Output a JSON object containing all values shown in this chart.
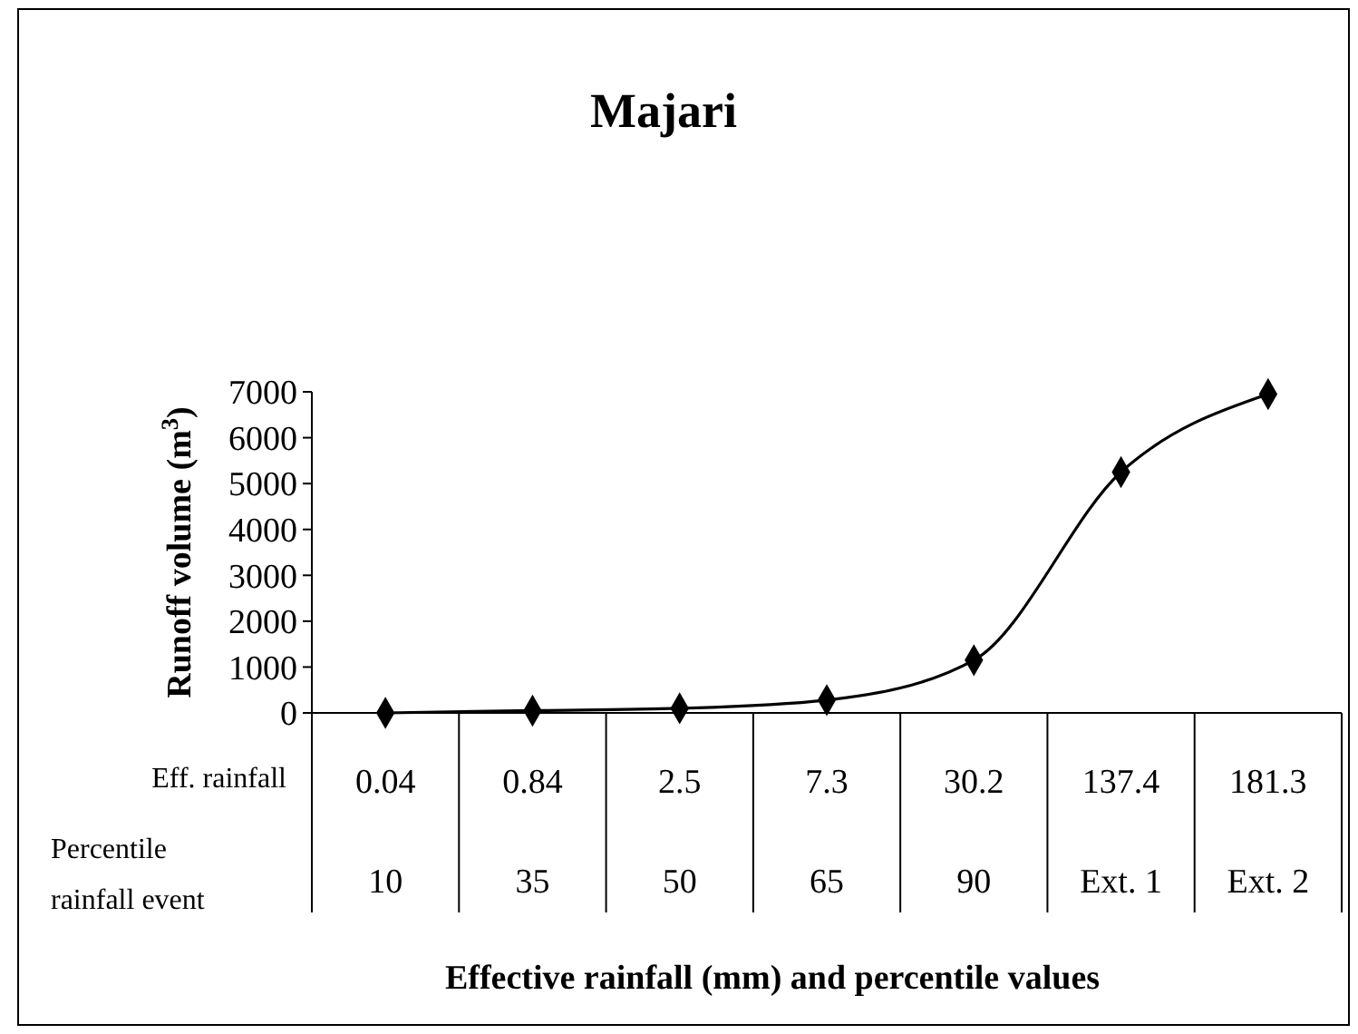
{
  "chart_data": {
    "type": "line",
    "title": "Majari",
    "xlabel": "Effective rainfall (mm) and percentile values",
    "ylabel": "Runoff volume (m$^{3}$)",
    "categories": [
      "0.04",
      "0.84",
      "2.5",
      "7.3",
      "30.2",
      "137.4",
      "181.3"
    ],
    "series": [
      {
        "color": "#000000",
        "values": [
          0,
          50,
          100,
          280,
          1150,
          5250,
          6950
        ]
      }
    ],
    "ylim": [
      0,
      7000
    ],
    "yticks": [
      0,
      1000,
      2000,
      3000,
      4000,
      5000,
      6000,
      7000
    ],
    "marker": "diamond",
    "line_style": "solid",
    "grid": false,
    "annotations": [
      "Eff. rainfall",
      "Percentile rainfall event",
      "10",
      "35",
      "50",
      "65",
      "90",
      "Ext. 1",
      "Ext. 2"
    ]
  }
}
